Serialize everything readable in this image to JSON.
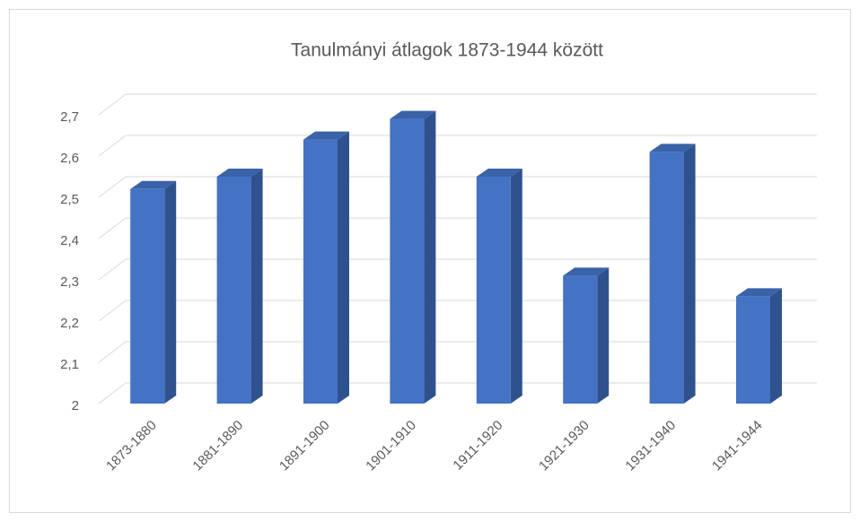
{
  "chart_data": {
    "type": "bar3d",
    "title": "Tanulmányi átlagok 1873-1944 között",
    "categories": [
      "1873-1880",
      "1881-1890",
      "1891-1900",
      "1901-1910",
      "1911-1920",
      "1921-1930",
      "1931-1940",
      "1941-1944"
    ],
    "values": [
      2.52,
      2.55,
      2.64,
      2.69,
      2.55,
      2.31,
      2.61,
      2.26
    ],
    "color": "#4472c4",
    "ylim": [
      2,
      2.7
    ],
    "yticks": [
      2,
      {
        "value": 2.1,
        "label": "2,1"
      },
      {
        "value": 2.2,
        "label": "2,2"
      },
      {
        "value": 2.3,
        "label": "2,3"
      },
      {
        "value": 2.4,
        "label": "2,4"
      },
      {
        "value": 2.5,
        "label": "2,5"
      },
      {
        "value": 2.6,
        "label": "2,6"
      },
      {
        "value": 2.7,
        "label": "2,7"
      }
    ],
    "grid": true
  }
}
